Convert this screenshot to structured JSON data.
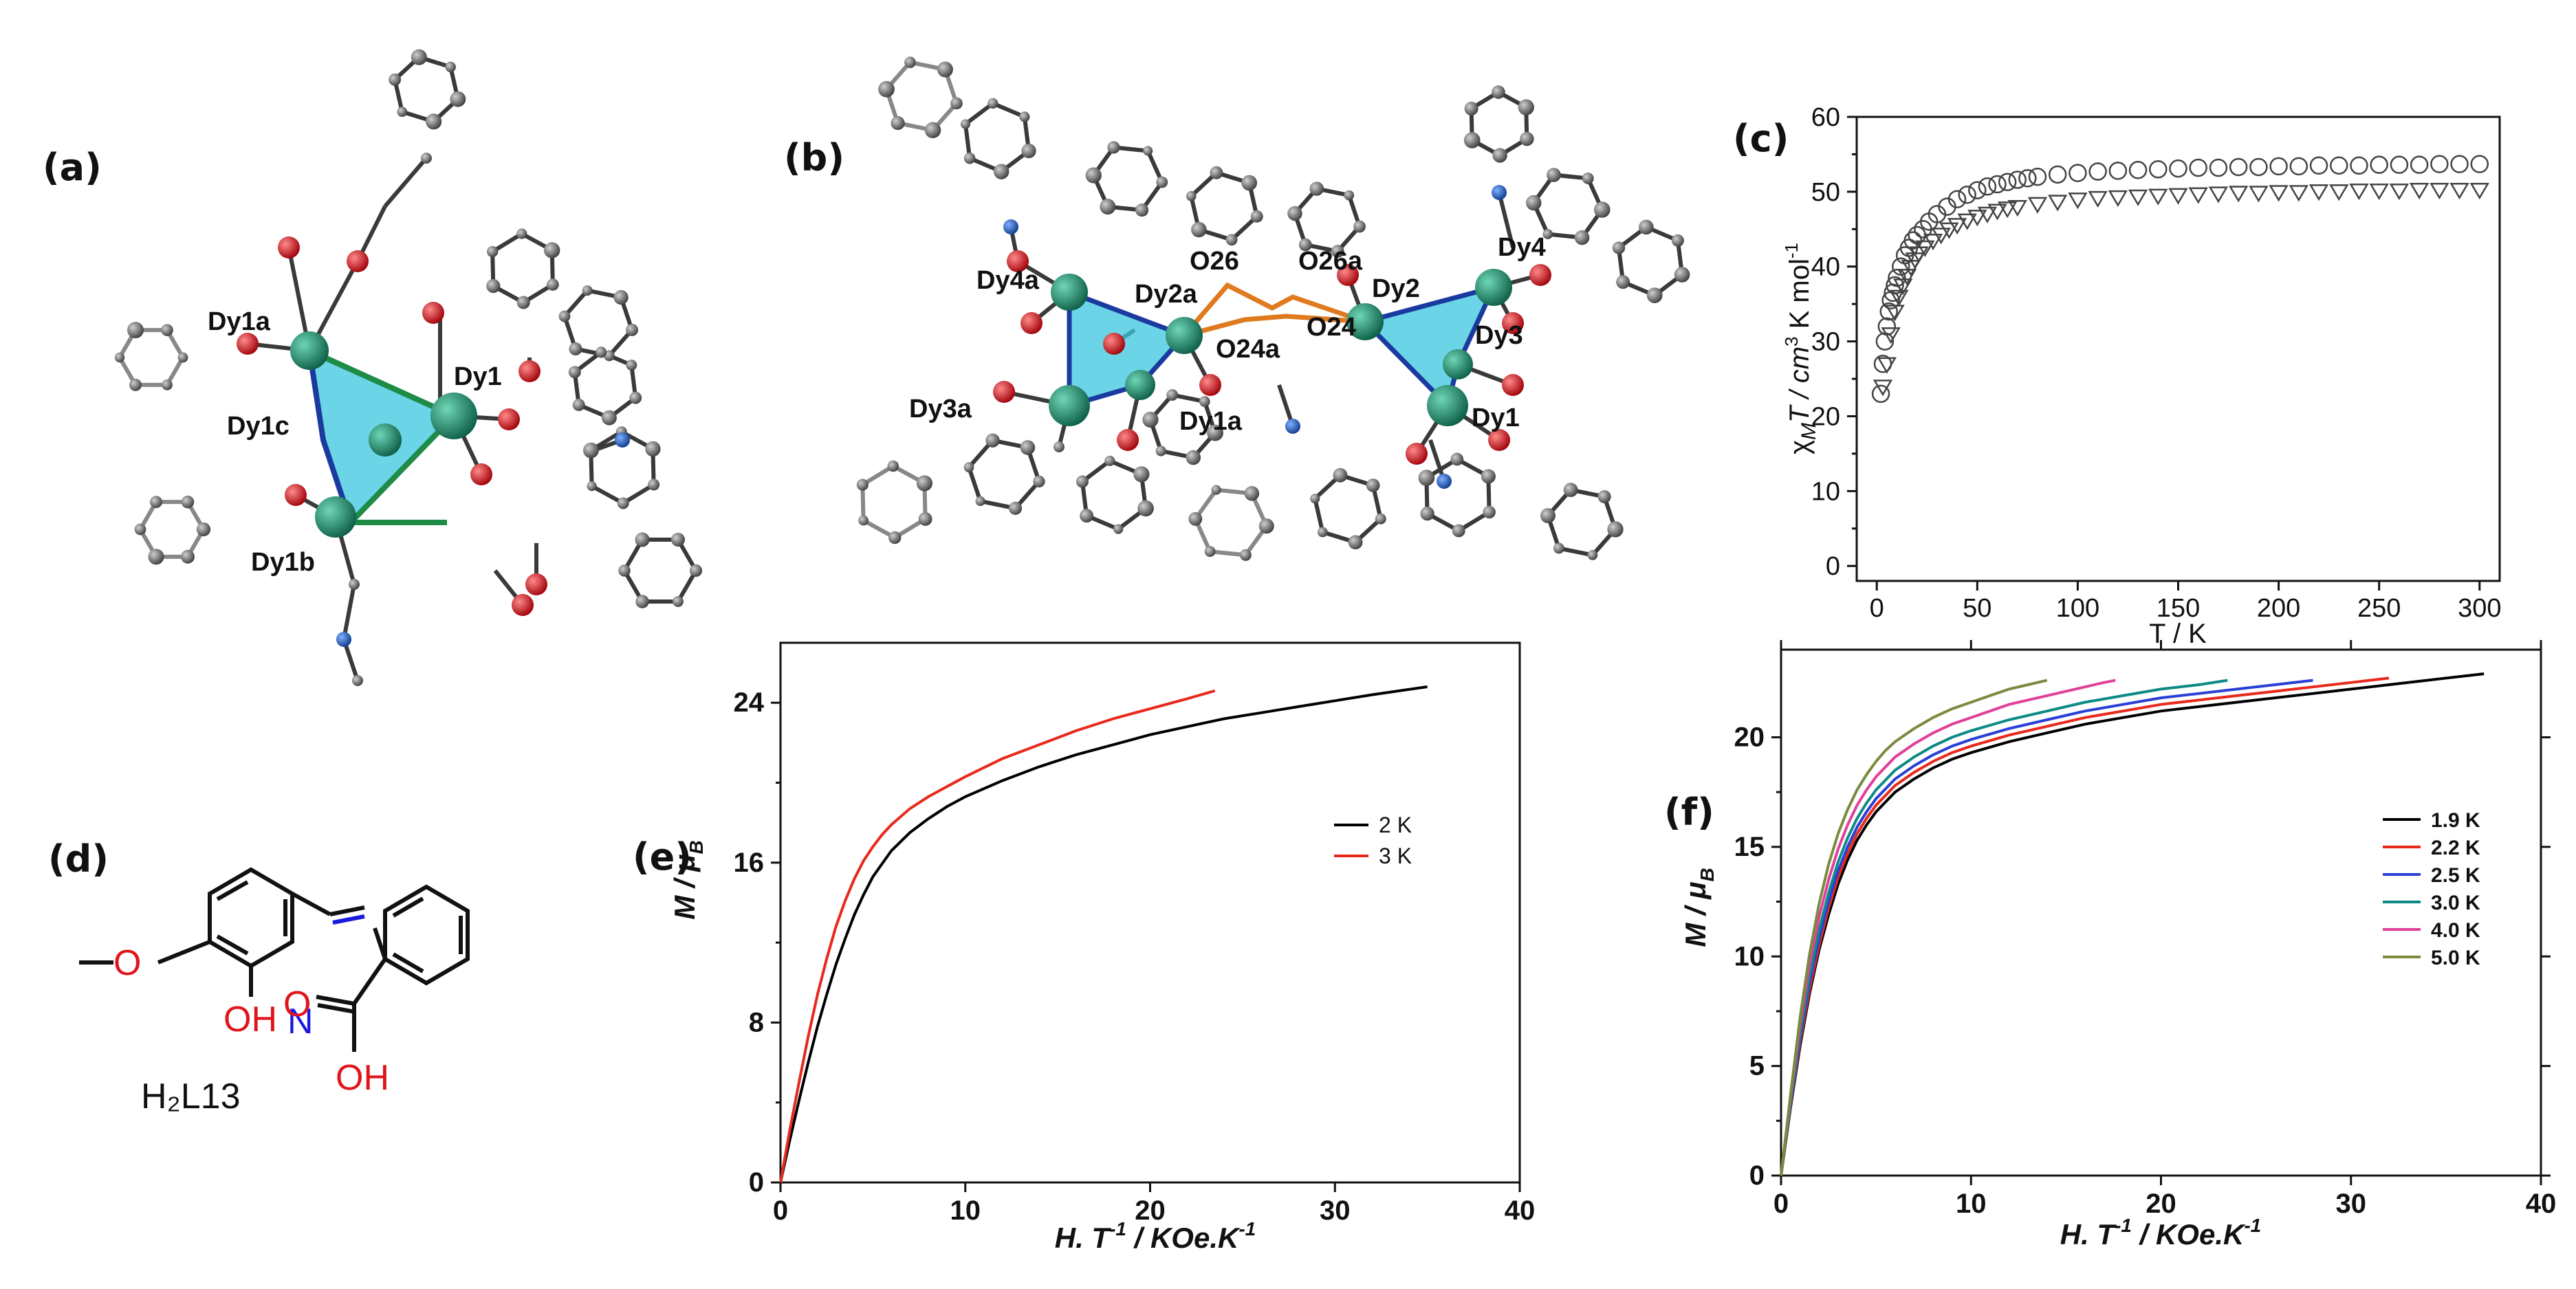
{
  "panel_labels": {
    "a": "(a)",
    "b": "(b)",
    "c": "(c)",
    "d": "(d)",
    "e": "(e)",
    "f": "(f)"
  },
  "structure_a": {
    "labels": [
      "Dy1a",
      "Dy1",
      "Dy1c",
      "Dy1b"
    ]
  },
  "structure_b": {
    "labels": [
      "Dy4a",
      "Dy2a",
      "O26",
      "O26a",
      "Dy2",
      "Dy4",
      "O24a",
      "O24",
      "Dy3",
      "Dy3a",
      "Dy1a",
      "Dy1"
    ]
  },
  "ligand_d": {
    "name": "H₂L13",
    "atoms": {
      "O_methoxy": "O",
      "OH": "OH",
      "N": "N",
      "O_carbonyl": "O",
      "COOH": "OH"
    }
  },
  "colors": {
    "dy_atom": "#1f8c6e",
    "oxygen": "#e0141b",
    "nitrogen": "#1a5fb4",
    "carbon": "#777777",
    "polyhedron": "#39c5dd",
    "polyhedron_edge": "#1b3aa0",
    "bridge": "#e07a1f"
  },
  "chart_data": [
    {
      "id": "c",
      "type": "scatter",
      "xlabel": "T / K",
      "ylabel": "χMT / cm³ K mol⁻¹",
      "ylabel_parts": {
        "chi": "χ",
        "M": "M",
        "T": "T / cm",
        "exp3": "3",
        "rest": " K mol",
        "expm1": "-1"
      },
      "xlim": [
        -10,
        310
      ],
      "ylim": [
        -2,
        60
      ],
      "xticks": [
        0,
        50,
        100,
        150,
        200,
        250,
        300
      ],
      "yticks": [
        0,
        10,
        20,
        30,
        40,
        50,
        60
      ],
      "series": [
        {
          "marker": "circle",
          "points": [
            [
              2,
              23
            ],
            [
              3,
              27
            ],
            [
              4,
              30
            ],
            [
              5,
              32
            ],
            [
              6,
              34
            ],
            [
              7,
              35.5
            ],
            [
              8,
              36.5
            ],
            [
              9,
              37.5
            ],
            [
              10,
              38.5
            ],
            [
              12,
              40
            ],
            [
              14,
              41.5
            ],
            [
              16,
              42.5
            ],
            [
              18,
              43.5
            ],
            [
              20,
              44.2
            ],
            [
              23,
              45
            ],
            [
              26,
              46
            ],
            [
              30,
              47
            ],
            [
              35,
              48
            ],
            [
              40,
              49
            ],
            [
              45,
              49.6
            ],
            [
              50,
              50.2
            ],
            [
              55,
              50.7
            ],
            [
              60,
              51
            ],
            [
              65,
              51.3
            ],
            [
              70,
              51.6
            ],
            [
              75,
              51.8
            ],
            [
              80,
              52
            ],
            [
              90,
              52.3
            ],
            [
              100,
              52.5
            ],
            [
              110,
              52.7
            ],
            [
              120,
              52.8
            ],
            [
              130,
              52.9
            ],
            [
              140,
              53
            ],
            [
              150,
              53.1
            ],
            [
              160,
              53.2
            ],
            [
              170,
              53.2
            ],
            [
              180,
              53.3
            ],
            [
              190,
              53.3
            ],
            [
              200,
              53.4
            ],
            [
              210,
              53.4
            ],
            [
              220,
              53.5
            ],
            [
              230,
              53.5
            ],
            [
              240,
              53.5
            ],
            [
              250,
              53.6
            ],
            [
              260,
              53.6
            ],
            [
              270,
              53.6
            ],
            [
              280,
              53.7
            ],
            [
              290,
              53.7
            ],
            [
              300,
              53.7
            ]
          ]
        },
        {
          "marker": "triangle-down",
          "points": [
            [
              3,
              24
            ],
            [
              5,
              27
            ],
            [
              7,
              31
            ],
            [
              9,
              34
            ],
            [
              11,
              36
            ],
            [
              13,
              37.5
            ],
            [
              15,
              38.8
            ],
            [
              17,
              40
            ],
            [
              19,
              41
            ],
            [
              21,
              41.8
            ],
            [
              24,
              42.6
            ],
            [
              28,
              43.5
            ],
            [
              32,
              44.3
            ],
            [
              36,
              45
            ],
            [
              40,
              45.6
            ],
            [
              45,
              46.2
            ],
            [
              50,
              46.7
            ],
            [
              55,
              47.1
            ],
            [
              60,
              47.5
            ],
            [
              65,
              47.8
            ],
            [
              70,
              48
            ],
            [
              80,
              48.4
            ],
            [
              90,
              48.7
            ],
            [
              100,
              49
            ],
            [
              110,
              49.2
            ],
            [
              120,
              49.3
            ],
            [
              130,
              49.4
            ],
            [
              140,
              49.5
            ],
            [
              150,
              49.6
            ],
            [
              160,
              49.7
            ],
            [
              170,
              49.8
            ],
            [
              180,
              49.9
            ],
            [
              190,
              49.9
            ],
            [
              200,
              50
            ],
            [
              210,
              50
            ],
            [
              220,
              50.1
            ],
            [
              230,
              50.1
            ],
            [
              240,
              50.2
            ],
            [
              250,
              50.2
            ],
            [
              260,
              50.2
            ],
            [
              270,
              50.3
            ],
            [
              280,
              50.3
            ],
            [
              290,
              50.3
            ],
            [
              300,
              50.3
            ]
          ]
        }
      ]
    },
    {
      "id": "e",
      "type": "line",
      "xlabel": "H. T⁻¹ / KOe.K⁻¹",
      "xlabel_parts": {
        "main": "H. T",
        "exp": "-1",
        "rest": " / KOe.K",
        "exp2": "-1"
      },
      "ylabel": "M / μB",
      "ylabel_parts": {
        "M": "M / μ",
        "sub": "B"
      },
      "xlim": [
        0,
        40
      ],
      "ylim": [
        0,
        27
      ],
      "xticks": [
        0,
        10,
        20,
        30,
        40
      ],
      "yticks": [
        0,
        8,
        16,
        24
      ],
      "series": [
        {
          "name": "2 K",
          "color": "#000000",
          "x": [
            0,
            0.5,
            1,
            1.5,
            2,
            2.5,
            3,
            3.5,
            4,
            4.5,
            5,
            6,
            7,
            8,
            9,
            10,
            12,
            14,
            16,
            18,
            20,
            22,
            24,
            26,
            28,
            30,
            32,
            35
          ],
          "y": [
            0,
            2.1,
            4.1,
            6,
            7.8,
            9.4,
            10.9,
            12.2,
            13.4,
            14.4,
            15.3,
            16.6,
            17.5,
            18.2,
            18.8,
            19.3,
            20.1,
            20.8,
            21.4,
            21.9,
            22.4,
            22.8,
            23.2,
            23.5,
            23.8,
            24.1,
            24.4,
            24.8
          ]
        },
        {
          "name": "3 K",
          "color": "#e8291c",
          "x": [
            0,
            0.5,
            1,
            1.5,
            2,
            2.5,
            3,
            3.5,
            4,
            4.5,
            5,
            5.5,
            6,
            7,
            8,
            9,
            10,
            12,
            14,
            16,
            18,
            20,
            22,
            23.5
          ],
          "y": [
            0,
            2.6,
            5,
            7.3,
            9.4,
            11.2,
            12.8,
            14.1,
            15.2,
            16.1,
            16.8,
            17.4,
            17.9,
            18.7,
            19.3,
            19.8,
            20.3,
            21.2,
            21.9,
            22.6,
            23.2,
            23.7,
            24.2,
            24.6
          ]
        }
      ]
    },
    {
      "id": "f",
      "type": "line",
      "xlabel": "H. T⁻¹ / KOe.K⁻¹",
      "xlabel_parts": {
        "main": "H. T",
        "exp": "-1",
        "rest": " / KOe.K",
        "exp2": "-1"
      },
      "ylabel": "M / μB",
      "ylabel_parts": {
        "M": "M / μ",
        "sub": "B"
      },
      "xlim": [
        0,
        40
      ],
      "ylim": [
        0,
        24
      ],
      "xticks": [
        0,
        10,
        20,
        30,
        40
      ],
      "yticks": [
        0,
        5,
        10,
        15,
        20
      ],
      "series": [
        {
          "name": "1.9 K",
          "color": "#000000",
          "x": [
            0,
            0.5,
            1,
            1.5,
            2,
            2.5,
            3,
            3.5,
            4,
            4.5,
            5,
            6,
            7,
            8,
            9,
            10,
            12,
            14,
            16,
            18,
            20,
            22,
            24,
            26,
            28,
            30,
            32,
            34,
            37
          ],
          "y": [
            0,
            3.1,
            5.9,
            8.3,
            10.3,
            11.9,
            13.3,
            14.4,
            15.3,
            16,
            16.6,
            17.5,
            18.1,
            18.6,
            19,
            19.3,
            19.8,
            20.2,
            20.6,
            20.9,
            21.2,
            21.4,
            21.6,
            21.8,
            22,
            22.2,
            22.4,
            22.6,
            22.9
          ]
        },
        {
          "name": "2.2 K",
          "color": "#e8291c",
          "x": [
            0,
            0.5,
            1,
            1.5,
            2,
            2.5,
            3,
            3.5,
            4,
            4.5,
            5,
            6,
            7,
            8,
            9,
            10,
            12,
            14,
            16,
            18,
            20,
            22,
            24,
            26,
            28,
            30,
            32
          ],
          "y": [
            0,
            3.2,
            6.1,
            8.5,
            10.5,
            12.2,
            13.6,
            14.7,
            15.6,
            16.3,
            16.9,
            17.8,
            18.4,
            18.9,
            19.3,
            19.6,
            20.1,
            20.5,
            20.9,
            21.2,
            21.5,
            21.7,
            21.9,
            22.1,
            22.3,
            22.5,
            22.7
          ]
        },
        {
          "name": "2.5 K",
          "color": "#2a3fd6",
          "x": [
            0,
            0.5,
            1,
            1.5,
            2,
            2.5,
            3,
            3.5,
            4,
            4.5,
            5,
            6,
            7,
            8,
            9,
            10,
            12,
            14,
            16,
            18,
            20,
            22,
            24,
            26,
            28
          ],
          "y": [
            0,
            3.3,
            6.3,
            8.8,
            10.8,
            12.5,
            13.9,
            15,
            15.9,
            16.6,
            17.2,
            18.1,
            18.7,
            19.2,
            19.6,
            19.9,
            20.4,
            20.8,
            21.2,
            21.5,
            21.8,
            22,
            22.2,
            22.4,
            22.6
          ]
        },
        {
          "name": "3.0 K",
          "color": "#0e8a86",
          "x": [
            0,
            0.5,
            1,
            1.5,
            2,
            2.5,
            3,
            3.5,
            4,
            4.5,
            5,
            6,
            7,
            8,
            9,
            10,
            12,
            14,
            16,
            18,
            20,
            22,
            23.5
          ],
          "y": [
            0,
            3.4,
            6.5,
            9.1,
            11.2,
            12.9,
            14.3,
            15.4,
            16.3,
            17,
            17.6,
            18.5,
            19.1,
            19.6,
            20,
            20.3,
            20.8,
            21.2,
            21.6,
            21.9,
            22.2,
            22.4,
            22.6
          ]
        },
        {
          "name": "4.0 K",
          "color": "#e0409a",
          "x": [
            0,
            0.5,
            1,
            1.5,
            2,
            2.5,
            3,
            3.5,
            4,
            4.5,
            5,
            6,
            7,
            8,
            9,
            10,
            11,
            12,
            13,
            14,
            15,
            16,
            17,
            17.6
          ],
          "y": [
            0,
            3.6,
            6.9,
            9.6,
            11.8,
            13.5,
            14.9,
            16,
            16.9,
            17.6,
            18.2,
            19.1,
            19.7,
            20.2,
            20.6,
            20.9,
            21.2,
            21.5,
            21.7,
            21.9,
            22.1,
            22.3,
            22.5,
            22.6
          ]
        },
        {
          "name": "5.0 K",
          "color": "#7a8a3e",
          "x": [
            0,
            0.5,
            1,
            1.5,
            2,
            2.5,
            3,
            3.5,
            4,
            4.5,
            5,
            5.5,
            6,
            7,
            8,
            9,
            10,
            11,
            12,
            13,
            14
          ],
          "y": [
            0,
            3.7,
            7.2,
            10.1,
            12.4,
            14.2,
            15.6,
            16.7,
            17.6,
            18.3,
            18.9,
            19.4,
            19.8,
            20.4,
            20.9,
            21.3,
            21.6,
            21.9,
            22.2,
            22.4,
            22.6
          ]
        }
      ]
    }
  ]
}
